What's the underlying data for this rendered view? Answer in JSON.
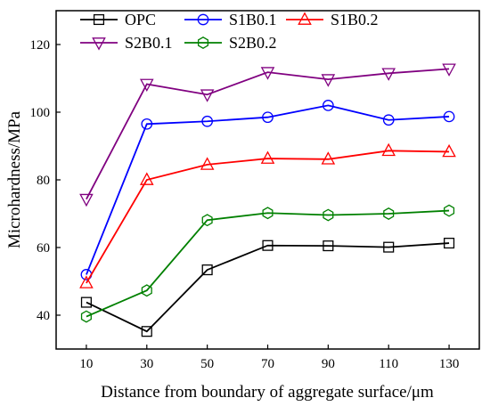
{
  "chart_data": {
    "type": "line",
    "xlabel": "Distance from boundary of aggregate surface/μm",
    "ylabel": "Microhardness/MPa",
    "x": [
      10,
      30,
      50,
      70,
      90,
      110,
      130
    ],
    "xlim": [
      0,
      140
    ],
    "ylim": [
      30,
      130
    ],
    "yticks": [
      40,
      60,
      80,
      100,
      120
    ],
    "grid": false,
    "legend_placement": "top",
    "series": [
      {
        "name": "OPC",
        "color": "#000000",
        "marker": "square",
        "values": [
          43.8,
          35.2,
          53.4,
          60.6,
          60.5,
          60.1,
          61.3
        ]
      },
      {
        "name": "S1B0.1",
        "color": "#0000ff",
        "marker": "circle",
        "values": [
          52.0,
          96.5,
          97.3,
          98.5,
          102.0,
          97.7,
          98.7
        ]
      },
      {
        "name": "S1B0.2",
        "color": "#ff0000",
        "marker": "triangle-up",
        "values": [
          49.5,
          80.0,
          84.5,
          86.3,
          86.1,
          88.6,
          88.3
        ]
      },
      {
        "name": "S2B0.1",
        "color": "#800080",
        "marker": "triangle-down",
        "values": [
          74.3,
          108.3,
          105.2,
          111.8,
          109.7,
          111.5,
          112.8
        ]
      },
      {
        "name": "S2B0.2",
        "color": "#008000",
        "marker": "hexagon",
        "values": [
          39.6,
          47.3,
          68.1,
          70.2,
          69.6,
          70.0,
          70.9
        ]
      }
    ]
  }
}
